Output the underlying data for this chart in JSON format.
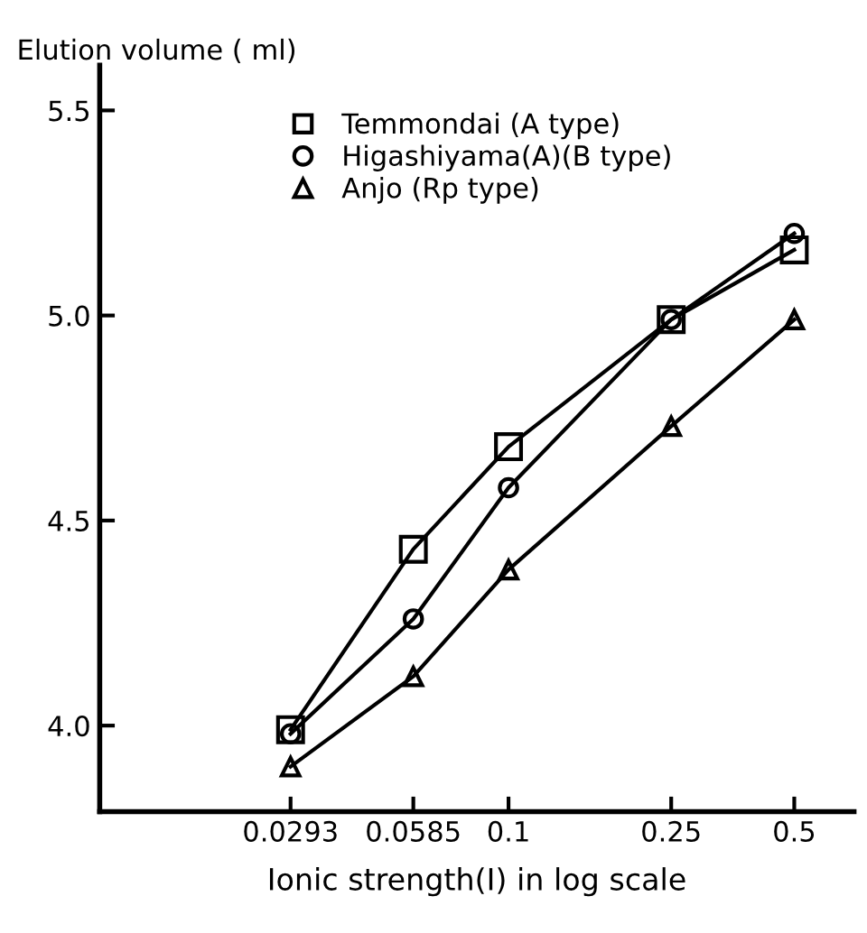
{
  "chart_data": {
    "type": "line",
    "xlabel": "Ionic strength(I) in log scale",
    "ylabel": "Elution volume ( ml)",
    "x": [
      0.0293,
      0.0585,
      0.1,
      0.25,
      0.5
    ],
    "series": [
      {
        "name": "Temmondai (A type)",
        "color": "#000000",
        "marker": "square",
        "values": [
          3.99,
          4.43,
          4.68,
          4.99,
          5.16
        ]
      },
      {
        "name": "Higashiyama(A)(B type)",
        "color": "#000000",
        "marker": "circle",
        "values": [
          3.98,
          4.26,
          4.58,
          4.99,
          5.2
        ]
      },
      {
        "name": "Anjo (Rp type)",
        "color": "#000000",
        "marker": "triangle",
        "values": [
          3.9,
          4.12,
          4.38,
          4.73,
          4.99
        ]
      }
    ],
    "log": "x",
    "xlim": [
      0.01,
      0.7
    ],
    "ylim": [
      3.79,
      5.61
    ],
    "xticks": [
      0.0293,
      0.0585,
      0.1,
      0.25,
      0.5
    ],
    "yticks": [
      {
        "value": 4.0,
        "label": "4.0"
      },
      {
        "value": 4.5,
        "label": "4.5"
      },
      {
        "value": 5.0,
        "label": "5.0"
      },
      {
        "value": 5.5,
        "label": "5.5"
      }
    ],
    "grid": false,
    "legend": "top left",
    "line_style": "solid"
  }
}
